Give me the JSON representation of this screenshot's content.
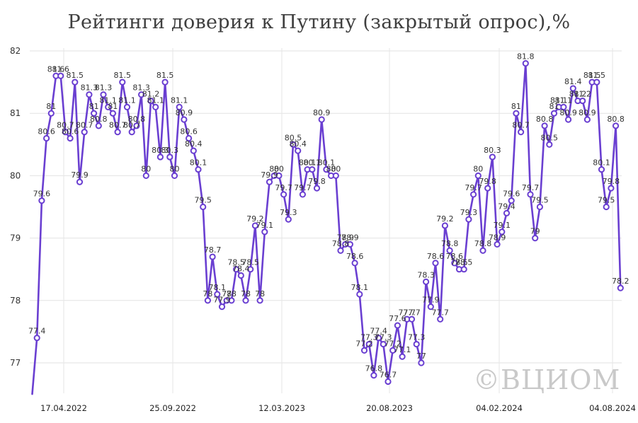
{
  "title": "Рейтинги доверия к Путину (закрытый опрос),%",
  "watermark": "©ВЦИОМ",
  "chart_data": {
    "type": "line",
    "title": "Рейтинги доверия к Путину (закрытый опрос),%",
    "ylim": [
      76.5,
      82.2
    ],
    "yticks": [
      77,
      78,
      79,
      80,
      81,
      82
    ],
    "grid": "horizontal",
    "line_color": "#6a3fd1",
    "xtick_labels": [
      "17.04.2022",
      "25.09.2022",
      "12.03.2023",
      "20.08.2023",
      "04.02.2024",
      "04.08.2024"
    ],
    "values": [
      76.5,
      77.4,
      79.6,
      80.6,
      81.0,
      81.6,
      81.6,
      80.7,
      80.6,
      81.5,
      79.9,
      80.7,
      81.3,
      81.0,
      80.8,
      81.3,
      81.1,
      81.0,
      80.7,
      81.5,
      81.1,
      80.7,
      80.8,
      81.3,
      80.0,
      81.2,
      81.1,
      80.3,
      81.5,
      80.3,
      80.0,
      81.1,
      80.9,
      80.6,
      80.4,
      80.1,
      79.5,
      78.0,
      78.7,
      78.1,
      77.9,
      78.0,
      78.0,
      78.5,
      78.4,
      78.0,
      78.5,
      79.2,
      78.0,
      79.1,
      79.9,
      80.0,
      80.0,
      79.7,
      79.3,
      80.5,
      80.4,
      79.7,
      80.1,
      80.1,
      79.8,
      80.9,
      80.1,
      80.0,
      80.0,
      78.8,
      78.9,
      78.9,
      78.6,
      78.1,
      77.2,
      77.3,
      76.8,
      77.4,
      77.3,
      76.7,
      77.2,
      77.6,
      77.1,
      77.7,
      77.7,
      77.3,
      77.0,
      78.3,
      77.9,
      78.6,
      77.7,
      79.2,
      78.8,
      78.6,
      78.5,
      78.5,
      79.3,
      79.7,
      80.0,
      78.8,
      79.8,
      80.3,
      78.9,
      79.1,
      79.4,
      79.6,
      81.0,
      80.7,
      81.8,
      79.7,
      79.0,
      79.5,
      80.8,
      80.5,
      81.0,
      81.1,
      81.1,
      80.9,
      81.4,
      81.2,
      81.2,
      80.9,
      81.5,
      81.5,
      80.1,
      79.5,
      79.8,
      80.8,
      78.2
    ],
    "data_labels": [
      "",
      "77.4",
      "79.6",
      "80.6",
      "81",
      "81.6",
      "81.6",
      "80.7",
      "80.6",
      "81.5",
      "79.9",
      "80.7",
      "81.3",
      "81",
      "80.8",
      "81.3",
      "81.1",
      "81",
      "80.7",
      "81.5",
      "81.1",
      "80.7",
      "80.8",
      "81.3",
      "80",
      "81.2",
      "81.1",
      "80.3",
      "81.5",
      "80.3",
      "80",
      "81.1",
      "80.9",
      "80.6",
      "80.4",
      "80.1",
      "79.5",
      "78",
      "78.7",
      "78.1",
      "77.9",
      "78",
      "78",
      "78.5",
      "78.4",
      "78",
      "78.5",
      "79.2",
      "78",
      "79.1",
      "79.9",
      "80",
      "80",
      "79.7",
      "79.3",
      "80.5",
      "80.4",
      "79.7",
      "80.1",
      "80.1",
      "79.8",
      "80.9",
      "80.1",
      "80",
      "80",
      "78.8",
      "78.9",
      "78.9",
      "78.6",
      "78.1",
      "77.2",
      "77.3",
      "76.8",
      "77.4",
      "77.3",
      "76.7",
      "77.2",
      "77.6",
      "77.1",
      "77.7",
      "77.7",
      "77.3",
      "77",
      "78.3",
      "77.9",
      "78.6",
      "77.7",
      "79.2",
      "78.8",
      "78.6",
      "78.5",
      "78.5",
      "79.3",
      "79.7",
      "80",
      "78.8",
      "79.8",
      "80.3",
      "78.9",
      "79.1",
      "79.4",
      "79.6",
      "81",
      "80.7",
      "81.8",
      "79.7",
      "79",
      "79.5",
      "80.8",
      "80.5",
      "81",
      "81.1",
      "81.1",
      "80.9",
      "81.4",
      "81.2",
      "81.2",
      "80.9",
      "81.5",
      "81.5",
      "80.1",
      "79.5",
      "79.8",
      "80.8",
      "78.2"
    ]
  }
}
